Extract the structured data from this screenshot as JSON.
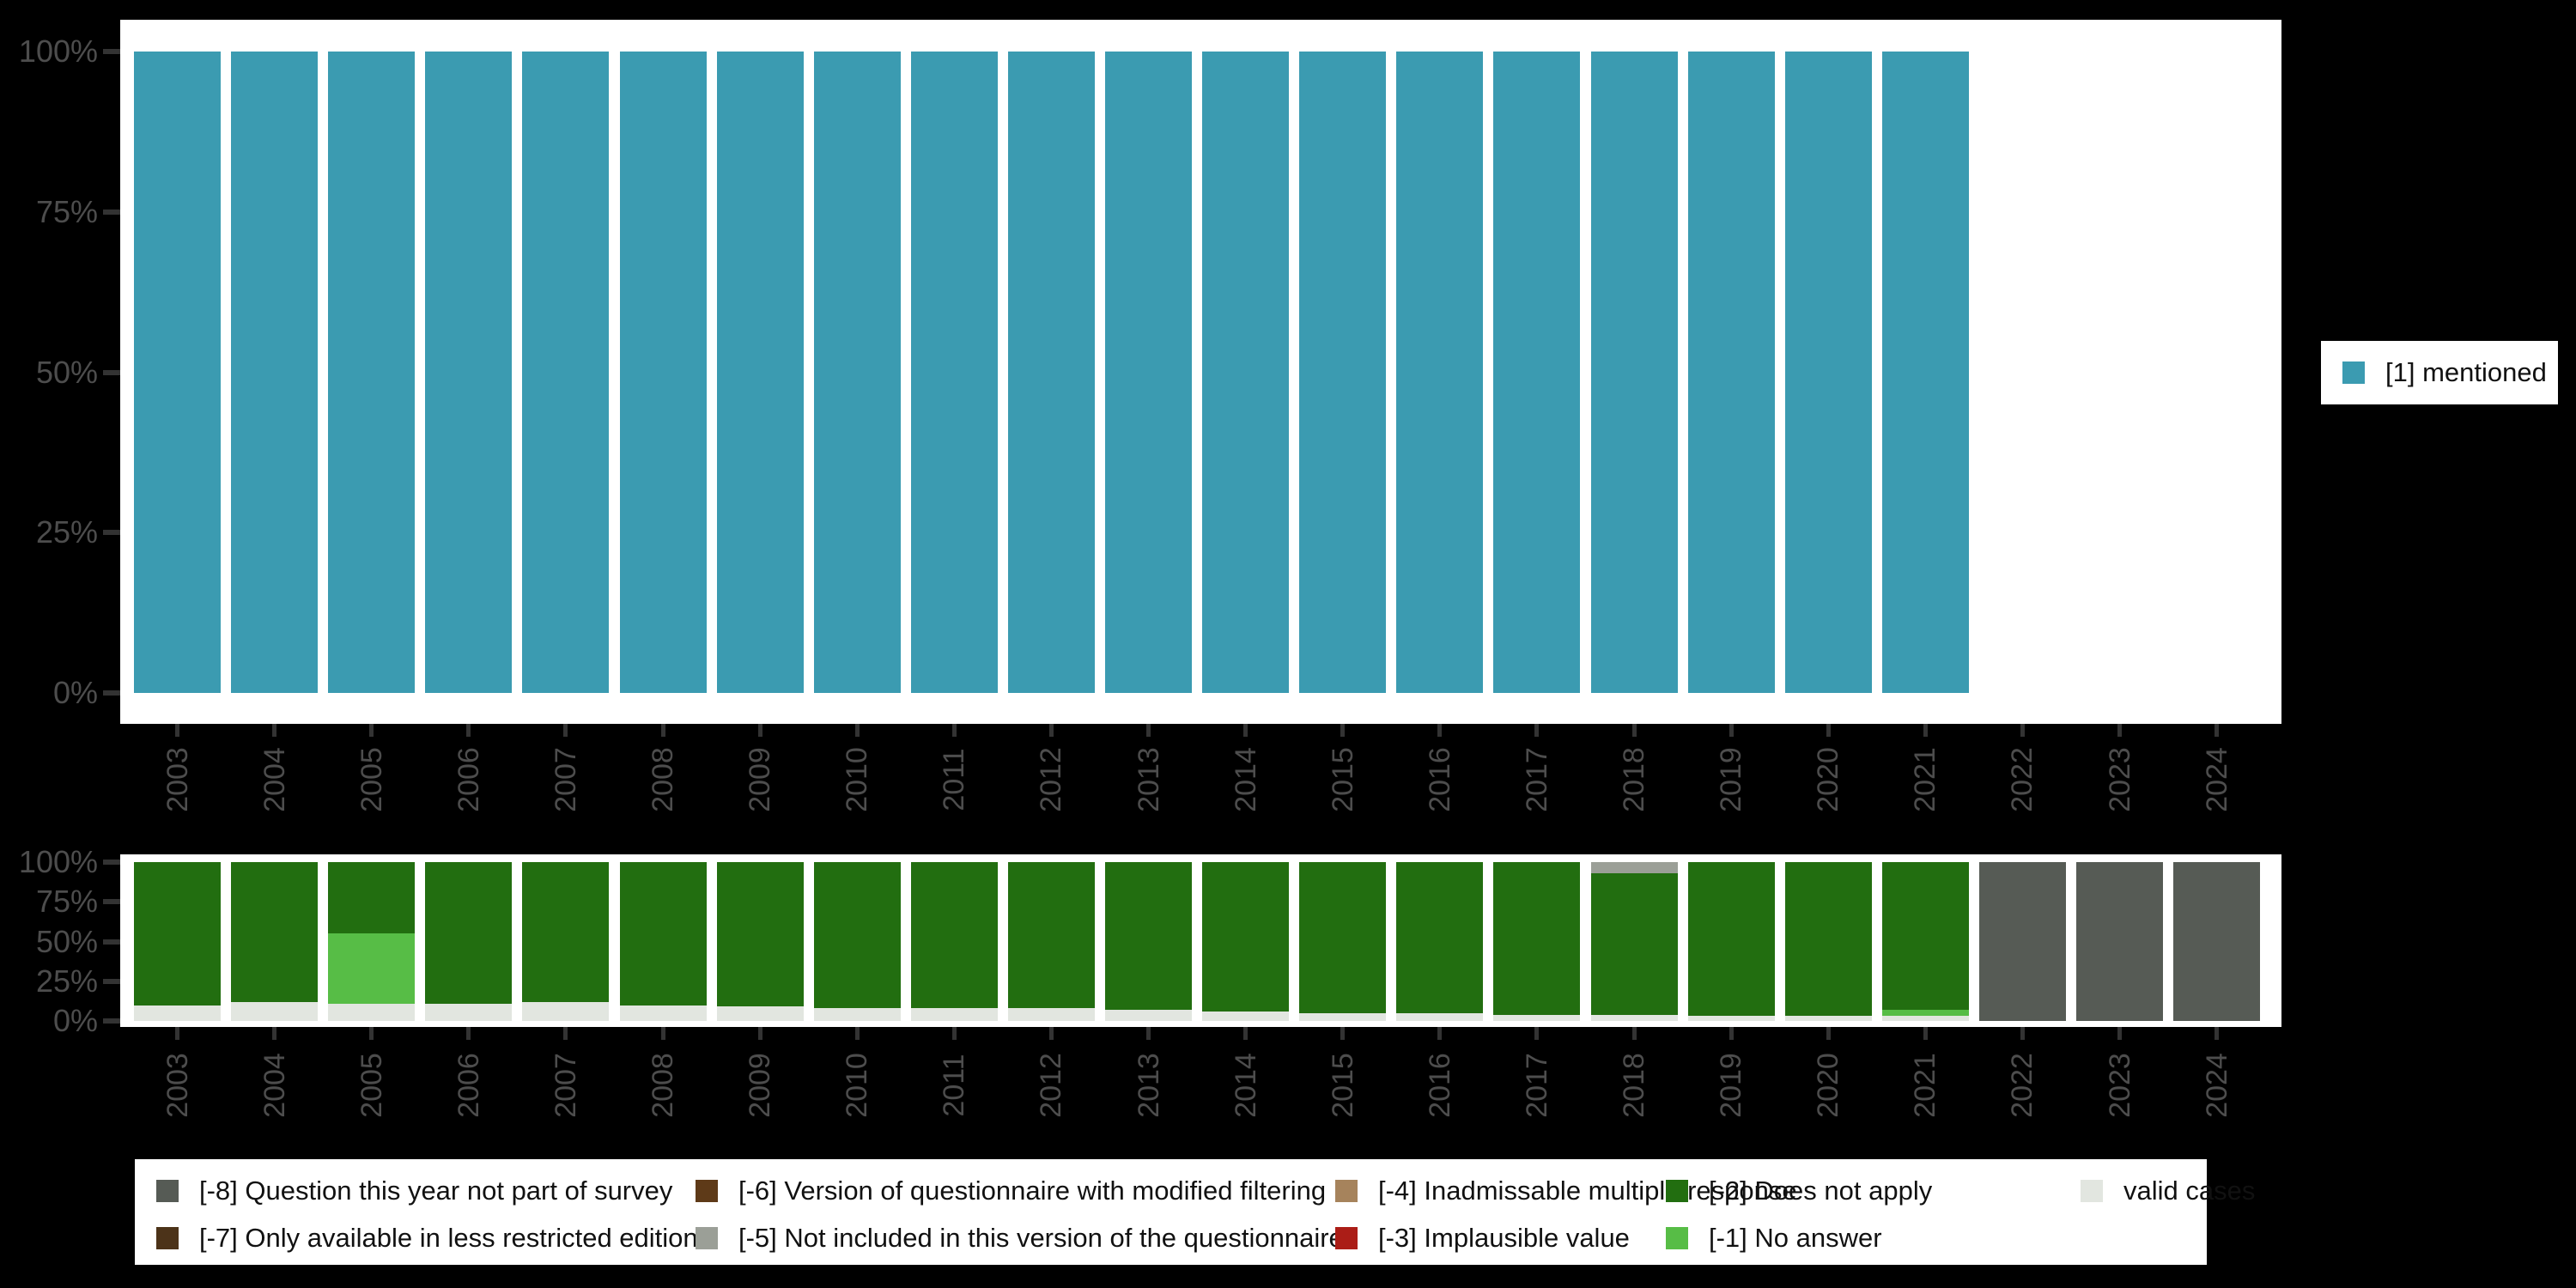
{
  "page": {
    "background": "#000000",
    "panel_background": "#ffffff",
    "axis_text_color": "#4d4d4d",
    "tick_color": "#333333"
  },
  "legends": {
    "right": {
      "items": [
        {
          "label": "[1] mentioned",
          "color": "#3b9bb1"
        }
      ]
    },
    "bottom": {
      "items": [
        {
          "label": "[-8] Question this year not part of survey",
          "color": "#565b55"
        },
        {
          "label": "[-7] Only available in less restricted edition",
          "color": "#4c3319"
        },
        {
          "label": "[-6] Version of questionnaire with modified filtering",
          "color": "#5e3a18"
        },
        {
          "label": "[-5] Not included in this version of the questionnaire",
          "color": "#9b9f97"
        },
        {
          "label": "[-4] Inadmissable multiple response",
          "color": "#a6835c"
        },
        {
          "label": "[-3] Implausible value",
          "color": "#ab1d17"
        },
        {
          "label": "[-2] Does not apply",
          "color": "#226e10"
        },
        {
          "label": "[-1] No answer",
          "color": "#57bd46"
        },
        {
          "label": "valid cases",
          "color": "#e2e6e0"
        }
      ]
    }
  },
  "chart_data": [
    {
      "type": "bar",
      "title": "",
      "categories": [
        "2003",
        "2004",
        "2005",
        "2006",
        "2007",
        "2008",
        "2009",
        "2010",
        "2011",
        "2012",
        "2013",
        "2014",
        "2015",
        "2016",
        "2017",
        "2018",
        "2019",
        "2020",
        "2021",
        "2022",
        "2023",
        "2024"
      ],
      "ytick_labels": [
        "0%",
        "25%",
        "50%",
        "75%",
        "100%"
      ],
      "ylim": [
        0,
        100
      ],
      "legend_position": "right",
      "series": [
        {
          "name": "[1] mentioned",
          "color": "#3b9bb1",
          "values": [
            100,
            100,
            100,
            100,
            100,
            100,
            100,
            100,
            100,
            100,
            100,
            100,
            100,
            100,
            100,
            100,
            100,
            100,
            100,
            null,
            null,
            null
          ]
        }
      ]
    },
    {
      "type": "stacked-bar",
      "title": "",
      "categories": [
        "2003",
        "2004",
        "2005",
        "2006",
        "2007",
        "2008",
        "2009",
        "2010",
        "2011",
        "2012",
        "2013",
        "2014",
        "2015",
        "2016",
        "2017",
        "2018",
        "2019",
        "2020",
        "2021",
        "2022",
        "2023",
        "2024"
      ],
      "ytick_labels": [
        "0%",
        "25%",
        "50%",
        "75%",
        "100%"
      ],
      "ylim": [
        0,
        100
      ],
      "legend_position": "bottom",
      "stack_order": "bottom-to-top",
      "series": [
        {
          "name": "valid cases",
          "color": "#e2e6e0",
          "values": [
            10,
            12,
            11,
            11,
            12,
            10,
            9,
            8,
            8,
            8,
            7,
            6,
            5,
            5,
            4,
            4,
            3,
            3,
            3,
            0,
            0,
            0
          ]
        },
        {
          "name": "[-1] No answer",
          "color": "#57bd46",
          "values": [
            0,
            0,
            44,
            0,
            0,
            0,
            0,
            0,
            0,
            0,
            0,
            0,
            0,
            0,
            0,
            0,
            0,
            0,
            4,
            0,
            0,
            0
          ]
        },
        {
          "name": "[-2] Does not apply",
          "color": "#226e10",
          "values": [
            90,
            88,
            45,
            89,
            88,
            90,
            91,
            92,
            92,
            92,
            93,
            94,
            95,
            95,
            96,
            89,
            97,
            97,
            93,
            0,
            0,
            0
          ]
        },
        {
          "name": "[-3] Implausible value",
          "color": "#ab1d17",
          "values": [
            0,
            0,
            0,
            0,
            0,
            0,
            0,
            0,
            0,
            0,
            0,
            0,
            0,
            0,
            0,
            0,
            0,
            0,
            0,
            0,
            0,
            0
          ]
        },
        {
          "name": "[-4] Inadmissable multiple response",
          "color": "#a6835c",
          "values": [
            0,
            0,
            0,
            0,
            0,
            0,
            0,
            0,
            0,
            0,
            0,
            0,
            0,
            0,
            0,
            0,
            0,
            0,
            0,
            0,
            0,
            0
          ]
        },
        {
          "name": "[-5] Not included in this version of the questionnaire",
          "color": "#9b9f97",
          "values": [
            0,
            0,
            0,
            0,
            0,
            0,
            0,
            0,
            0,
            0,
            0,
            0,
            0,
            0,
            0,
            7,
            0,
            0,
            0,
            0,
            0,
            0
          ]
        },
        {
          "name": "[-6] Version of questionnaire with modified filtering",
          "color": "#5e3a18",
          "values": [
            0,
            0,
            0,
            0,
            0,
            0,
            0,
            0,
            0,
            0,
            0,
            0,
            0,
            0,
            0,
            0,
            0,
            0,
            0,
            0,
            0,
            0
          ]
        },
        {
          "name": "[-7] Only available in less restricted edition",
          "color": "#4c3319",
          "values": [
            0,
            0,
            0,
            0,
            0,
            0,
            0,
            0,
            0,
            0,
            0,
            0,
            0,
            0,
            0,
            0,
            0,
            0,
            0,
            0,
            0,
            0
          ]
        },
        {
          "name": "[-8] Question this year not part of survey",
          "color": "#565b55",
          "values": [
            0,
            0,
            0,
            0,
            0,
            0,
            0,
            0,
            0,
            0,
            0,
            0,
            0,
            0,
            0,
            0,
            0,
            0,
            0,
            100,
            100,
            100
          ]
        }
      ]
    }
  ]
}
